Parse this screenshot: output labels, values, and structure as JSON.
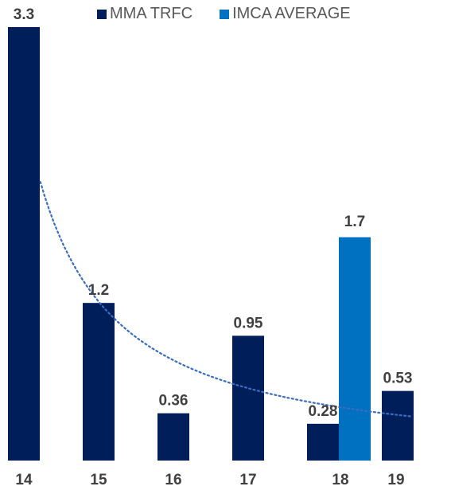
{
  "chart_data": {
    "type": "bar",
    "categories": [
      "14",
      "15",
      "16",
      "17",
      "18",
      "19"
    ],
    "series": [
      {
        "name": "MMA TRFC",
        "color": "#001e5a",
        "values": [
          3.3,
          1.2,
          0.36,
          0.95,
          0.28,
          0.53
        ],
        "labels": [
          "3.3",
          "1.2",
          "0.36",
          "0.95",
          "0.28",
          "0.53"
        ]
      },
      {
        "name": "IMCA AVERAGE",
        "color": "#0070c0",
        "values": [
          null,
          null,
          null,
          null,
          1.7,
          null
        ],
        "labels": [
          "",
          "",
          "",
          "",
          "1.7",
          ""
        ]
      }
    ],
    "trendline": {
      "style": "dotted",
      "color": "#3a6cc0",
      "fit": "power"
    },
    "ylim": [
      0,
      3.3
    ],
    "grid": false,
    "legend_position": "top"
  }
}
